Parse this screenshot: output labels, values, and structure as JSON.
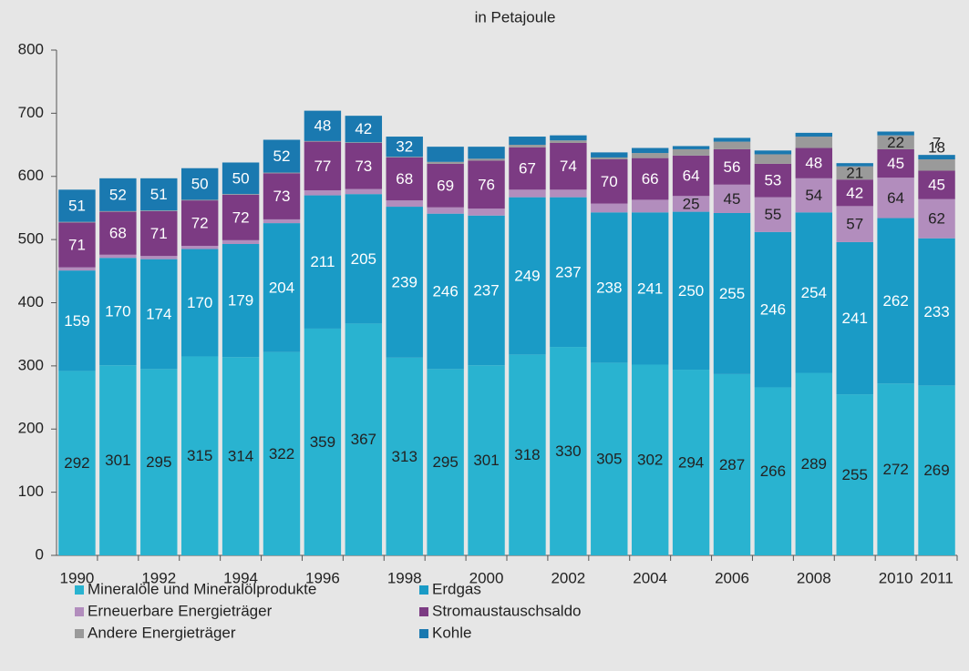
{
  "chart_data": {
    "type": "stacked_bar",
    "subtitle": "in Petajoule",
    "categories": [
      "1990",
      null,
      "1992",
      null,
      "1994",
      null,
      "1996",
      null,
      "1998",
      null,
      "2000",
      null,
      "2002",
      null,
      "2004",
      null,
      "2006",
      null,
      "2008",
      null,
      "2010",
      "2011"
    ],
    "ylim": [
      0,
      800
    ],
    "yticks": [
      0,
      100,
      200,
      300,
      400,
      500,
      600,
      700,
      800
    ],
    "series": [
      {
        "name": "Mineralöle und Mineralölprodukte",
        "color": "#29b3d0",
        "label_color": "#222",
        "values": [
          292,
          301,
          295,
          315,
          314,
          322,
          359,
          367,
          313,
          295,
          301,
          318,
          330,
          305,
          302,
          294,
          287,
          266,
          289,
          255,
          272,
          269
        ]
      },
      {
        "name": "Erdgas",
        "color": "#1a9bc6",
        "label_color": "#fff",
        "values": [
          159,
          170,
          174,
          170,
          179,
          204,
          211,
          205,
          239,
          246,
          237,
          249,
          237,
          238,
          241,
          250,
          255,
          246,
          254,
          241,
          262,
          233
        ]
      },
      {
        "name": "Erneuerbare Energieträger",
        "color": "#b28dbd",
        "label_color": "#222",
        "values": [
          5,
          5,
          5,
          5,
          6,
          6,
          8,
          8,
          10,
          10,
          11,
          12,
          12,
          14,
          20,
          25,
          45,
          55,
          54,
          57,
          64,
          62
        ],
        "value_labels": [
          null,
          null,
          null,
          null,
          null,
          null,
          null,
          null,
          null,
          null,
          null,
          null,
          null,
          null,
          null,
          "25",
          "45",
          "55",
          "54",
          "57",
          "64",
          "62"
        ]
      },
      {
        "name": "Stromaustauschsaldo",
        "color": "#7c3b83",
        "label_color": "#fff",
        "values": [
          71,
          68,
          71,
          72,
          72,
          73,
          77,
          73,
          68,
          69,
          76,
          67,
          74,
          70,
          66,
          64,
          56,
          53,
          48,
          42,
          45,
          45
        ]
      },
      {
        "name": "Andere Energieträger",
        "color": "#9a9a9a",
        "label_color": "#222",
        "values": [
          1,
          1,
          1,
          1,
          1,
          1,
          1,
          1,
          1,
          3,
          3,
          4,
          4,
          3,
          8,
          10,
          12,
          15,
          18,
          21,
          22,
          18
        ],
        "value_labels": [
          null,
          null,
          null,
          null,
          null,
          null,
          null,
          null,
          null,
          null,
          null,
          null,
          null,
          null,
          null,
          null,
          null,
          null,
          null,
          "21",
          "22",
          "18"
        ]
      },
      {
        "name": "Kohle",
        "color": "#1a79b0",
        "label_color": "#fff",
        "values": [
          51,
          52,
          51,
          50,
          50,
          52,
          48,
          42,
          32,
          24,
          19,
          13,
          8,
          8,
          8,
          5,
          6,
          6,
          6,
          5,
          6,
          7
        ],
        "value_labels": [
          "51",
          "52",
          "51",
          "50",
          "50",
          "52",
          "48",
          "42",
          "32",
          null,
          null,
          null,
          null,
          null,
          null,
          null,
          null,
          null,
          null,
          null,
          null,
          "7"
        ]
      }
    ]
  }
}
